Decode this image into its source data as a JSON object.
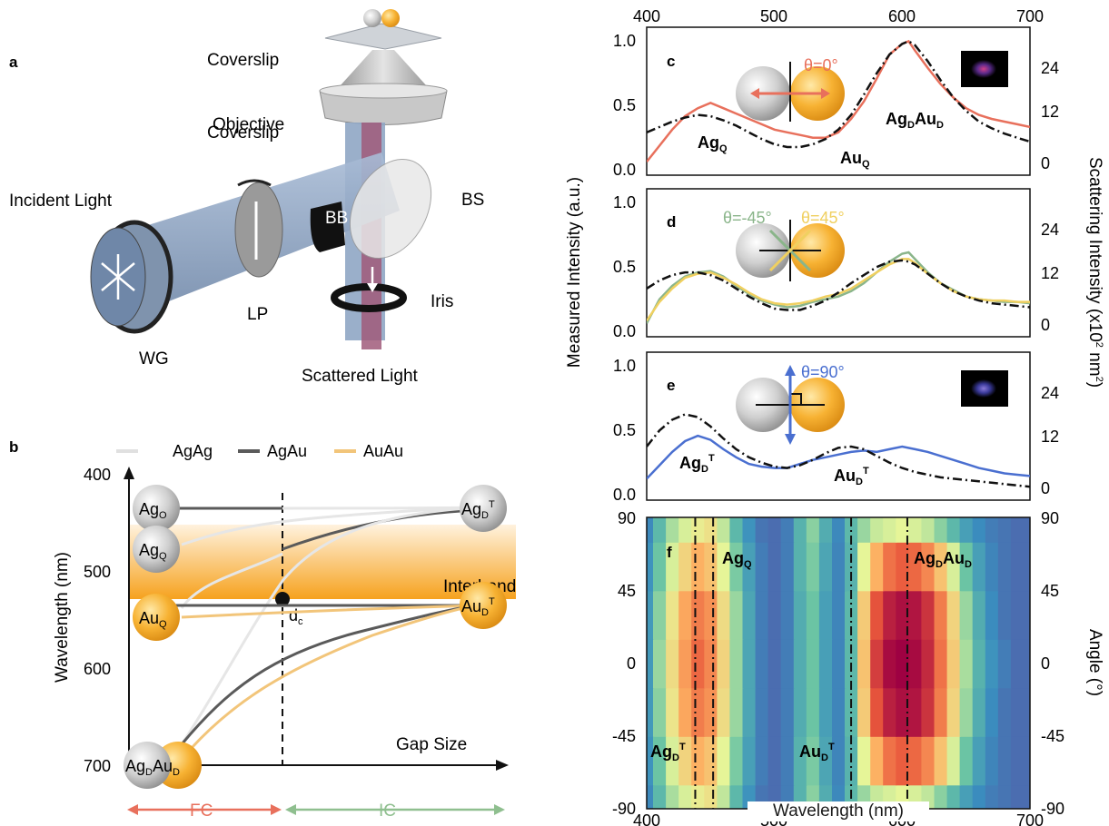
{
  "panel_a": {
    "letter": "a",
    "labels": {
      "coverslip": "Coverslip",
      "objective": "Objective",
      "incident": "Incident Light",
      "bb": "BB",
      "bs": "BS",
      "lp": "LP",
      "iris": "Iris",
      "wg": "WG",
      "scattered": "Scattered Light"
    },
    "colors": {
      "beam_in": "#8fa6c4",
      "beam_out": "#a05a7a",
      "objective": "#b8b8b8",
      "ring": "#111111"
    }
  },
  "panel_b": {
    "letter": "b",
    "legend": [
      {
        "name": "AgAg",
        "color": "#e0e0e0"
      },
      {
        "name": "AgAu",
        "color": "#5a5a5a"
      },
      {
        "name": "AuAu",
        "color": "#f2c57a"
      }
    ],
    "ylabel": "Wavelength (nm)",
    "xlabel": "Gap Size",
    "yticks": [
      "400",
      "500",
      "600",
      "700"
    ],
    "interband_label": "Interband",
    "interband_range_nm": [
      455,
      532
    ],
    "dc_label": "d",
    "dc_sub": "c",
    "spheres": {
      "ago": {
        "main": "Ag",
        "sub": "O",
        "nm": 444,
        "metal": "Ag"
      },
      "agq": {
        "main": "Ag",
        "sub": "Q",
        "nm": 500,
        "metal": "Ag"
      },
      "auq": {
        "main": "Au",
        "sub": "Q",
        "nm": 575,
        "metal": "Au"
      },
      "agdt": {
        "main": "Ag",
        "sub": "D",
        "sup": "T",
        "nm": 440,
        "metal": "Ag"
      },
      "audt": {
        "main": "Au",
        "sub": "D",
        "sup": "T",
        "nm": 565,
        "metal": "Au"
      },
      "dimer": {
        "main1": "Ag",
        "sub1": "D",
        "main2": "Au",
        "sub2": "D",
        "nm": 700
      }
    },
    "fc_label": "FC",
    "ic_label": "IC",
    "fc_color": "#e8705c",
    "ic_color": "#8fbf8f"
  },
  "panel_c": {
    "letter": "c",
    "angle_label": "θ=0°",
    "angle_color": "#e8705c",
    "tag_agq": {
      "main": "Ag",
      "sub": "Q"
    },
    "tag_auq": {
      "main": "Au",
      "sub": "Q"
    },
    "tag_dimer": {
      "main1": "Ag",
      "sub1": "D",
      "main2": "Au",
      "sub2": "D"
    }
  },
  "panel_d": {
    "letter": "d",
    "angle_label_neg": "θ=-45°",
    "angle_label_pos": "θ=45°",
    "color_neg": "#8ab58a",
    "color_pos": "#f0d060"
  },
  "panel_e": {
    "letter": "e",
    "angle_label": "θ=90°",
    "angle_color": "#4a6fd0",
    "tag_agdt": {
      "main": "Ag",
      "sub": "D",
      "sup": "T"
    },
    "tag_audt": {
      "main": "Au",
      "sub": "D",
      "sup": "T"
    }
  },
  "panel_f": {
    "letter": "f",
    "tag_agq": {
      "main": "Ag",
      "sub": "Q"
    },
    "tag_dimer": {
      "main1": "Ag",
      "sub1": "D",
      "main2": "Au",
      "sub2": "D"
    },
    "tag_agdt": {
      "main": "Ag",
      "sub": "D",
      "sup": "T"
    },
    "tag_audt": {
      "main": "Au",
      "sub": "D",
      "sup": "T"
    },
    "dashed_lines_nm": [
      438,
      452,
      560,
      604
    ]
  },
  "axes": {
    "top_ticks": [
      "400",
      "500",
      "600",
      "700"
    ],
    "bottom_ticks": [
      "400",
      "500",
      "600",
      "700"
    ],
    "left_ticks_spectra": [
      "0.0",
      "0.5",
      "1.0"
    ],
    "right_ticks_spectra": [
      "0",
      "12",
      "24"
    ],
    "angle_ticks": [
      "-90",
      "-45",
      "0",
      "45",
      "90"
    ],
    "left_label": "Measured Intensity (a.u.)",
    "right_label_main": "Scattering Intensity (x10",
    "right_label_sup": "2",
    "right_label_unit": " nm",
    "right_label_sup2": "2",
    "right_label_end": ")",
    "angle_label": "Angle (°)",
    "xlabel": "Wavelength (nm)"
  },
  "chart_data": [
    {
      "type": "line",
      "panel": "c",
      "x_range": [
        400,
        700
      ],
      "ylim_left": [
        0,
        1.05
      ],
      "ylim_right": [
        0,
        28
      ],
      "series": [
        {
          "name": "θ=0°",
          "color": "#e8705c",
          "style": "solid",
          "x": [
            400,
            410,
            420,
            430,
            440,
            450,
            460,
            470,
            480,
            490,
            500,
            510,
            520,
            530,
            540,
            550,
            560,
            570,
            580,
            590,
            600,
            605,
            610,
            620,
            630,
            640,
            650,
            660,
            670,
            680,
            690,
            700
          ],
          "y": [
            0.1,
            0.22,
            0.34,
            0.44,
            0.5,
            0.54,
            0.5,
            0.46,
            0.42,
            0.38,
            0.34,
            0.32,
            0.3,
            0.28,
            0.28,
            0.32,
            0.42,
            0.55,
            0.72,
            0.9,
            0.98,
            1.0,
            0.93,
            0.8,
            0.68,
            0.58,
            0.5,
            0.45,
            0.42,
            0.4,
            0.38,
            0.36
          ]
        },
        {
          "name": "",
          "color": "#111111",
          "style": "dashdot",
          "x": [
            400,
            410,
            420,
            430,
            440,
            450,
            460,
            470,
            480,
            490,
            500,
            510,
            520,
            530,
            540,
            550,
            560,
            570,
            580,
            590,
            600,
            605,
            610,
            620,
            630,
            640,
            650,
            660,
            670,
            680,
            690,
            700
          ],
          "y": [
            0.32,
            0.36,
            0.4,
            0.43,
            0.45,
            0.44,
            0.41,
            0.37,
            0.32,
            0.27,
            0.23,
            0.21,
            0.21,
            0.23,
            0.27,
            0.34,
            0.45,
            0.6,
            0.76,
            0.9,
            0.98,
            1.0,
            0.97,
            0.85,
            0.71,
            0.58,
            0.48,
            0.4,
            0.35,
            0.31,
            0.28,
            0.25
          ]
        }
      ]
    },
    {
      "type": "line",
      "panel": "d",
      "x_range": [
        400,
        700
      ],
      "ylim_left": [
        0,
        1.05
      ],
      "ylim_right": [
        0,
        28
      ],
      "series": [
        {
          "name": "θ=-45°",
          "color": "#8ab58a",
          "style": "solid",
          "x": [
            400,
            410,
            420,
            430,
            440,
            450,
            460,
            470,
            480,
            490,
            500,
            510,
            520,
            530,
            540,
            550,
            560,
            570,
            580,
            590,
            600,
            605,
            610,
            620,
            630,
            640,
            650,
            660,
            670,
            680,
            690,
            700
          ],
          "y": [
            0.1,
            0.28,
            0.38,
            0.45,
            0.48,
            0.49,
            0.45,
            0.38,
            0.32,
            0.27,
            0.24,
            0.22,
            0.23,
            0.26,
            0.28,
            0.3,
            0.34,
            0.4,
            0.48,
            0.56,
            0.62,
            0.63,
            0.58,
            0.48,
            0.4,
            0.35,
            0.3,
            0.28,
            0.27,
            0.26,
            0.26,
            0.25
          ]
        },
        {
          "name": "θ=45°",
          "color": "#f0d060",
          "style": "solid",
          "x": [
            400,
            410,
            420,
            430,
            440,
            450,
            460,
            470,
            480,
            490,
            500,
            510,
            520,
            530,
            540,
            550,
            560,
            570,
            580,
            590,
            600,
            605,
            610,
            620,
            630,
            640,
            650,
            660,
            670,
            680,
            690,
            700
          ],
          "y": [
            0.12,
            0.26,
            0.36,
            0.44,
            0.47,
            0.48,
            0.44,
            0.39,
            0.33,
            0.28,
            0.25,
            0.24,
            0.25,
            0.27,
            0.3,
            0.32,
            0.36,
            0.42,
            0.48,
            0.54,
            0.58,
            0.58,
            0.55,
            0.47,
            0.4,
            0.34,
            0.3,
            0.28,
            0.27,
            0.27,
            0.26,
            0.26
          ]
        },
        {
          "name": "",
          "color": "#111111",
          "style": "dashdot",
          "x": [
            400,
            410,
            420,
            430,
            440,
            450,
            460,
            470,
            480,
            490,
            500,
            510,
            520,
            530,
            540,
            550,
            560,
            570,
            580,
            590,
            600,
            605,
            610,
            620,
            630,
            640,
            650,
            660,
            670,
            680,
            690,
            700
          ],
          "y": [
            0.36,
            0.42,
            0.46,
            0.48,
            0.48,
            0.46,
            0.42,
            0.36,
            0.3,
            0.25,
            0.21,
            0.2,
            0.2,
            0.23,
            0.27,
            0.33,
            0.4,
            0.46,
            0.52,
            0.56,
            0.57,
            0.56,
            0.54,
            0.47,
            0.4,
            0.34,
            0.3,
            0.27,
            0.25,
            0.24,
            0.23,
            0.22
          ]
        }
      ]
    },
    {
      "type": "line",
      "panel": "e",
      "x_range": [
        400,
        700
      ],
      "ylim_left": [
        0,
        1.05
      ],
      "ylim_right": [
        0,
        28
      ],
      "series": [
        {
          "name": "θ=90°",
          "color": "#4a6fd0",
          "style": "solid",
          "x": [
            400,
            410,
            420,
            430,
            440,
            450,
            460,
            470,
            480,
            490,
            500,
            510,
            520,
            530,
            540,
            550,
            560,
            570,
            580,
            590,
            600,
            610,
            620,
            630,
            640,
            650,
            660,
            670,
            680,
            690,
            700
          ],
          "y": [
            0.16,
            0.26,
            0.36,
            0.44,
            0.48,
            0.45,
            0.38,
            0.32,
            0.27,
            0.25,
            0.24,
            0.24,
            0.27,
            0.3,
            0.32,
            0.34,
            0.36,
            0.37,
            0.36,
            0.38,
            0.4,
            0.38,
            0.36,
            0.33,
            0.3,
            0.27,
            0.24,
            0.22,
            0.2,
            0.19,
            0.18
          ]
        },
        {
          "name": "",
          "color": "#111111",
          "style": "dashdot",
          "x": [
            400,
            410,
            420,
            430,
            440,
            450,
            460,
            470,
            480,
            490,
            500,
            510,
            520,
            530,
            540,
            550,
            560,
            570,
            580,
            590,
            600,
            610,
            620,
            630,
            640,
            650,
            660,
            670,
            680,
            690,
            700
          ],
          "y": [
            0.4,
            0.52,
            0.6,
            0.64,
            0.62,
            0.55,
            0.46,
            0.38,
            0.32,
            0.28,
            0.25,
            0.24,
            0.26,
            0.3,
            0.35,
            0.39,
            0.4,
            0.38,
            0.33,
            0.28,
            0.24,
            0.21,
            0.19,
            0.17,
            0.16,
            0.15,
            0.14,
            0.13,
            0.12,
            0.11,
            0.1
          ]
        }
      ]
    },
    {
      "type": "heatmap",
      "panel": "f",
      "x_range": [
        400,
        700
      ],
      "y_range": [
        -90,
        90
      ],
      "xlabel": "Wavelength (nm)",
      "ylabel": "Angle (°)",
      "x": [
        400,
        410,
        420,
        430,
        440,
        450,
        460,
        470,
        480,
        490,
        500,
        510,
        520,
        530,
        540,
        550,
        560,
        570,
        580,
        590,
        600,
        610,
        620,
        630,
        640,
        650,
        660,
        670,
        680,
        690,
        700
      ],
      "y": [
        -90,
        -60,
        -30,
        0,
        30,
        60,
        90
      ],
      "values": [
        [
          0.15,
          0.3,
          0.42,
          0.48,
          0.52,
          0.55,
          0.45,
          0.3,
          0.18,
          0.1,
          0.08,
          0.12,
          0.28,
          0.38,
          0.26,
          0.15,
          0.3,
          0.4,
          0.46,
          0.48,
          0.5,
          0.48,
          0.45,
          0.38,
          0.3,
          0.22,
          0.16,
          0.12,
          0.1,
          0.08,
          0.08
        ],
        [
          0.18,
          0.34,
          0.48,
          0.58,
          0.66,
          0.62,
          0.5,
          0.36,
          0.22,
          0.12,
          0.08,
          0.12,
          0.28,
          0.36,
          0.24,
          0.14,
          0.28,
          0.5,
          0.66,
          0.78,
          0.82,
          0.8,
          0.74,
          0.62,
          0.48,
          0.34,
          0.22,
          0.14,
          0.1,
          0.08,
          0.08
        ],
        [
          0.2,
          0.38,
          0.54,
          0.68,
          0.76,
          0.72,
          0.56,
          0.4,
          0.24,
          0.12,
          0.08,
          0.12,
          0.26,
          0.34,
          0.22,
          0.14,
          0.3,
          0.6,
          0.84,
          0.94,
          0.97,
          0.96,
          0.9,
          0.76,
          0.58,
          0.4,
          0.26,
          0.16,
          0.1,
          0.08,
          0.08
        ],
        [
          0.2,
          0.4,
          0.56,
          0.7,
          0.8,
          0.74,
          0.58,
          0.4,
          0.24,
          0.12,
          0.08,
          0.12,
          0.26,
          0.34,
          0.22,
          0.14,
          0.3,
          0.62,
          0.88,
          0.98,
          1.0,
          0.98,
          0.92,
          0.78,
          0.6,
          0.42,
          0.28,
          0.18,
          0.12,
          0.08,
          0.08
        ],
        [
          0.2,
          0.38,
          0.54,
          0.68,
          0.76,
          0.72,
          0.56,
          0.4,
          0.24,
          0.12,
          0.08,
          0.12,
          0.26,
          0.34,
          0.22,
          0.14,
          0.3,
          0.6,
          0.84,
          0.94,
          0.97,
          0.96,
          0.9,
          0.76,
          0.58,
          0.4,
          0.26,
          0.16,
          0.1,
          0.08,
          0.08
        ],
        [
          0.18,
          0.34,
          0.48,
          0.58,
          0.66,
          0.62,
          0.5,
          0.36,
          0.22,
          0.12,
          0.08,
          0.12,
          0.28,
          0.36,
          0.24,
          0.14,
          0.28,
          0.5,
          0.66,
          0.78,
          0.82,
          0.8,
          0.74,
          0.62,
          0.48,
          0.34,
          0.22,
          0.14,
          0.1,
          0.08,
          0.08
        ],
        [
          0.15,
          0.3,
          0.42,
          0.48,
          0.52,
          0.55,
          0.45,
          0.3,
          0.18,
          0.1,
          0.08,
          0.12,
          0.28,
          0.38,
          0.26,
          0.15,
          0.3,
          0.4,
          0.46,
          0.48,
          0.5,
          0.48,
          0.45,
          0.38,
          0.3,
          0.22,
          0.16,
          0.12,
          0.1,
          0.08,
          0.08
        ]
      ],
      "colormap": [
        "#5b4ea2",
        "#3a8fbf",
        "#66c2a5",
        "#e6f598",
        "#fdae61",
        "#e8563c",
        "#9e0142"
      ]
    }
  ]
}
